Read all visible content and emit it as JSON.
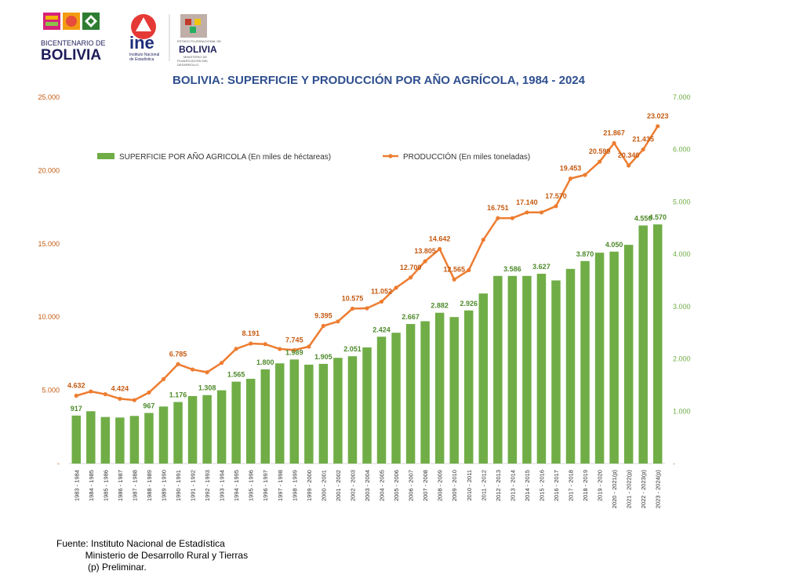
{
  "header": {
    "logo_bicentenario_line1": "BICENTENARIO DE",
    "logo_bicentenario_line2": "BOLIVIA",
    "logo_ine": "ine",
    "logo_ine_sub1": "Instituto Nacional",
    "logo_ine_sub2": "de Estadística",
    "logo_estado_top": "ESTADO PLURINACIONAL DE",
    "logo_estado_main": "BOLIVIA",
    "logo_estado_sub1": "MINISTERIO DE",
    "logo_estado_sub2": "PLANIFICACIÓN DEL DESARROLLO"
  },
  "colors": {
    "bar": "#70ad47",
    "bar_label": "#4e8a2b",
    "line": "#ed7d31",
    "line_label": "#c55a11",
    "left_axis": "#c55a11",
    "right_axis": "#70ad47",
    "title": "#2f4f8f"
  },
  "chart_data": {
    "type": "bar+line",
    "title": "BOLIVIA: SUPERFICIE Y PRODUCCIÓN POR AÑO AGRÍCOLA, 1984 - 2024",
    "categories": [
      "1983 - 1984",
      "1984 - 1985",
      "1985 - 1986",
      "1986 - 1987",
      "1987 - 1988",
      "1988 - 1989",
      "1989 - 1990",
      "1990 - 1991",
      "1991 - 1992",
      "1992 - 1993",
      "1993 - 1994",
      "1994 - 1995",
      "1995 - 1996",
      "1996 - 1997",
      "1997 - 1998",
      "1998 - 1999",
      "1999 - 2000",
      "2000 - 2001",
      "2001 - 2002",
      "2002 - 2003",
      "2003 - 2004",
      "2004 - 2005",
      "2005 - 2006",
      "2006 - 2007",
      "2007 - 2008",
      "2008 - 2009",
      "2009 - 2010",
      "2010 - 2011",
      "2011 - 2012",
      "2012 - 2013",
      "2013 - 2014",
      "2014 - 2015",
      "2015 - 2016",
      "2016 - 2017",
      "2017 - 2018",
      "2018 - 2019",
      "2019 - 2020",
      "2020 - 2021(p)",
      "2021 - 2022(p)",
      "2022 - 2023(p)",
      "2023 - 2024(p)"
    ],
    "series": [
      {
        "name": "SUPERFICIE  POR AÑO AGRICOLA (En  miles de héctareas)",
        "type": "bar",
        "axis": "right",
        "values": [
          917,
          1000,
          890,
          880,
          910,
          967,
          1090,
          1176,
          1290,
          1308,
          1400,
          1565,
          1620,
          1800,
          1915,
          1989,
          1890,
          1905,
          2020,
          2051,
          2220,
          2424,
          2500,
          2667,
          2720,
          2882,
          2800,
          2926,
          3250,
          3586,
          3586,
          3586,
          3627,
          3500,
          3720,
          3870,
          4030,
          4050,
          4180,
          4550,
          4570
        ],
        "labels": [
          "917",
          "",
          "",
          "",
          "",
          "967",
          "",
          "1.176",
          "",
          "1.308",
          "",
          "1.565",
          "",
          "1.800",
          "",
          "1.989",
          "",
          "1.905",
          "",
          "2.051",
          "",
          "2.424",
          "",
          "2.667",
          "",
          "2.882",
          "",
          "2.926",
          "",
          "",
          "3.586",
          "",
          "3.627",
          "",
          "",
          "3.870",
          "",
          "4.050",
          "",
          "4.550",
          "4.570"
        ]
      },
      {
        "name": "PRODUCCIÓN (En miles toneladas)",
        "type": "line",
        "axis": "left",
        "values": [
          4632,
          4920,
          4730,
          4424,
          4330,
          4850,
          5760,
          6785,
          6420,
          6230,
          6870,
          7830,
          8191,
          8150,
          7820,
          7745,
          7980,
          9395,
          9700,
          10575,
          10600,
          11052,
          12000,
          12700,
          13805,
          14642,
          12565,
          13200,
          15270,
          16751,
          16751,
          17140,
          17140,
          17570,
          19453,
          19700,
          20599,
          21867,
          20340,
          21435,
          23023
        ],
        "labels": [
          "4.632",
          "",
          "",
          "4.424",
          "",
          "",
          "",
          "6.785",
          "",
          "",
          "",
          "",
          "8.191",
          "",
          "",
          "7.745",
          "",
          "9.395",
          "",
          "10.575",
          "",
          "11.052",
          "",
          "12.700",
          "13.805",
          "14.642",
          "12.565",
          "",
          "",
          "16.751",
          "",
          "17.140",
          "",
          "17.570",
          "19.453",
          "",
          "20.599",
          "21.867",
          "20.340",
          "21.435",
          "23.023"
        ]
      }
    ],
    "left_axis": {
      "min": 0,
      "max": 25000,
      "ticks": [
        "-",
        "5.000",
        "10.000",
        "15.000",
        "20.000",
        "25.000"
      ]
    },
    "right_axis": {
      "min": 0,
      "max": 7000,
      "ticks": [
        "-",
        "1.000",
        "2.000",
        "3.000",
        "4.000",
        "5.000",
        "6.000",
        "7.000"
      ]
    },
    "legend_position": "top",
    "grid": false
  },
  "footnote": {
    "line1": "Fuente: Instituto Nacional de Estadística",
    "line2": "           Ministerio de Desarrollo Rural y Tierras",
    "line3": "            (p) Preliminar."
  }
}
